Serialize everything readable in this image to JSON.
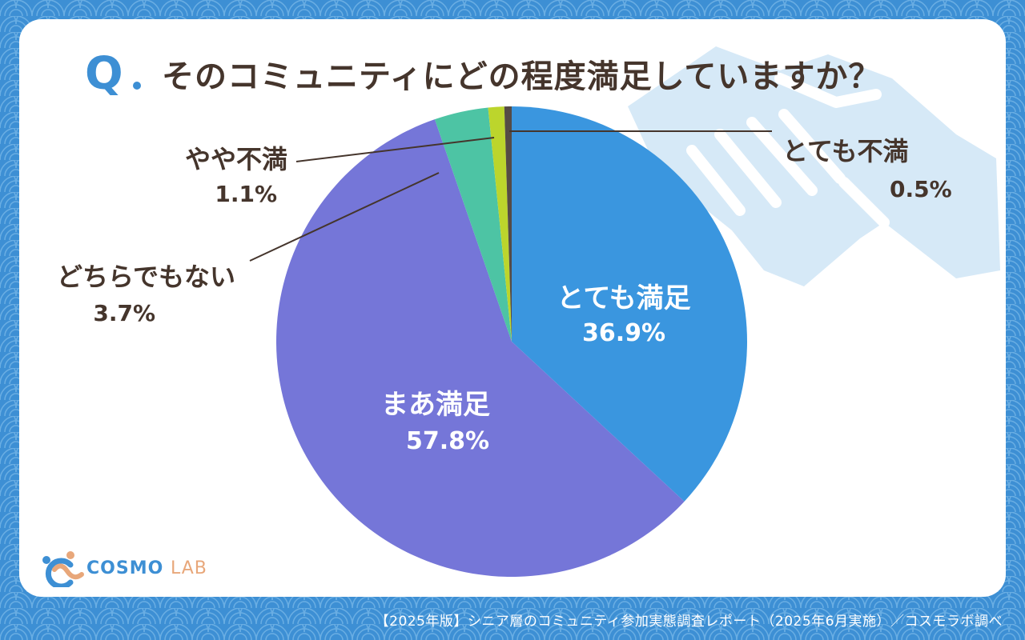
{
  "question": {
    "mark": "Q",
    "text": "そのコミュニティにどの程度満足していますか？"
  },
  "logo": {
    "name": "COSMO",
    "suffix": "LAB"
  },
  "footer": {
    "source": "【2025年版】シニア層のコミュニティ参加実態調査レポート（2025年6月実施）／コスモラボ調べ"
  },
  "colors": {
    "background": "#3d8fd4",
    "card": "#ffffff",
    "text": "#45352c",
    "decoration": "#d6e9f7"
  },
  "chart_data": {
    "type": "pie",
    "title": "",
    "start": "top",
    "direction": "clockwise",
    "slices": [
      {
        "label": "とても満足",
        "value": 36.9,
        "display": "36.9%",
        "color": "#3a96df",
        "label_style": "inside"
      },
      {
        "label": "まあ満足",
        "value": 57.8,
        "display": "57.8%",
        "color": "#7576d8",
        "label_style": "inside"
      },
      {
        "label": "どちらでもない",
        "value": 3.7,
        "display": "3.7%",
        "color": "#4dc4a4",
        "label_style": "callout"
      },
      {
        "label": "やや不満",
        "value": 1.1,
        "display": "1.1%",
        "color": "#bcd52c",
        "label_style": "callout"
      },
      {
        "label": "とても不満",
        "value": 0.5,
        "display": "0.5%",
        "color": "#554b45",
        "label_style": "callout"
      }
    ]
  }
}
